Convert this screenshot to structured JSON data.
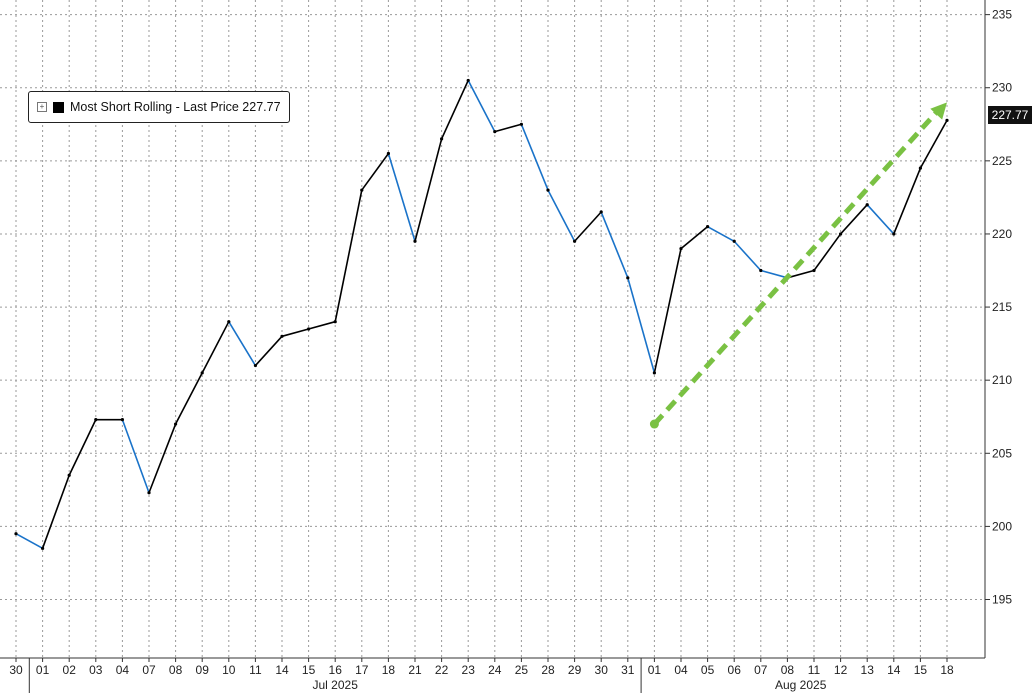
{
  "chart_data": {
    "type": "line",
    "legend": {
      "label": "Most Short Rolling - Last Price 227.77",
      "position": "top-left"
    },
    "last_price_tag": "227.77",
    "ylim": [
      191,
      236
    ],
    "y_ticks": [
      195,
      200,
      205,
      210,
      215,
      220,
      225,
      230,
      235
    ],
    "grid": true,
    "x_tick_labels": [
      "30",
      "01",
      "02",
      "03",
      "04",
      "07",
      "08",
      "09",
      "10",
      "11",
      "14",
      "15",
      "16",
      "17",
      "18",
      "21",
      "22",
      "23",
      "24",
      "25",
      "28",
      "29",
      "30",
      "31",
      "01",
      "04",
      "05",
      "06",
      "07",
      "08",
      "11",
      "12",
      "13",
      "14",
      "15",
      "18"
    ],
    "month_labels": [
      "Jul 2025",
      "Aug 2025"
    ],
    "series": [
      {
        "color_up": "#000000",
        "color_down": "#1a73c9",
        "x": [
          "30",
          "01",
          "02",
          "03",
          "04",
          "07",
          "08",
          "09",
          "10",
          "11",
          "14",
          "15",
          "16",
          "17",
          "18",
          "21",
          "22",
          "23",
          "24",
          "25",
          "28",
          "29",
          "30",
          "31",
          "01",
          "04",
          "05",
          "06",
          "07",
          "08",
          "11",
          "12",
          "13",
          "14",
          "15",
          "18"
        ],
        "values": [
          199.5,
          198.5,
          203.5,
          207.3,
          207.3,
          202.3,
          207.0,
          210.5,
          214.0,
          211.0,
          213.0,
          213.5,
          214.0,
          223.0,
          225.5,
          219.5,
          226.5,
          230.5,
          227.0,
          227.5,
          223.0,
          219.5,
          221.5,
          217.0,
          210.5,
          219.0,
          220.5,
          219.5,
          217.5,
          217.0,
          217.5,
          220.0,
          222.0,
          220.0,
          224.5,
          227.77
        ]
      }
    ],
    "annotation_arrow": {
      "from": {
        "x": "01",
        "y": 207.0
      },
      "to": {
        "x": "18",
        "y": 229.0
      },
      "color": "#7ac143"
    }
  }
}
